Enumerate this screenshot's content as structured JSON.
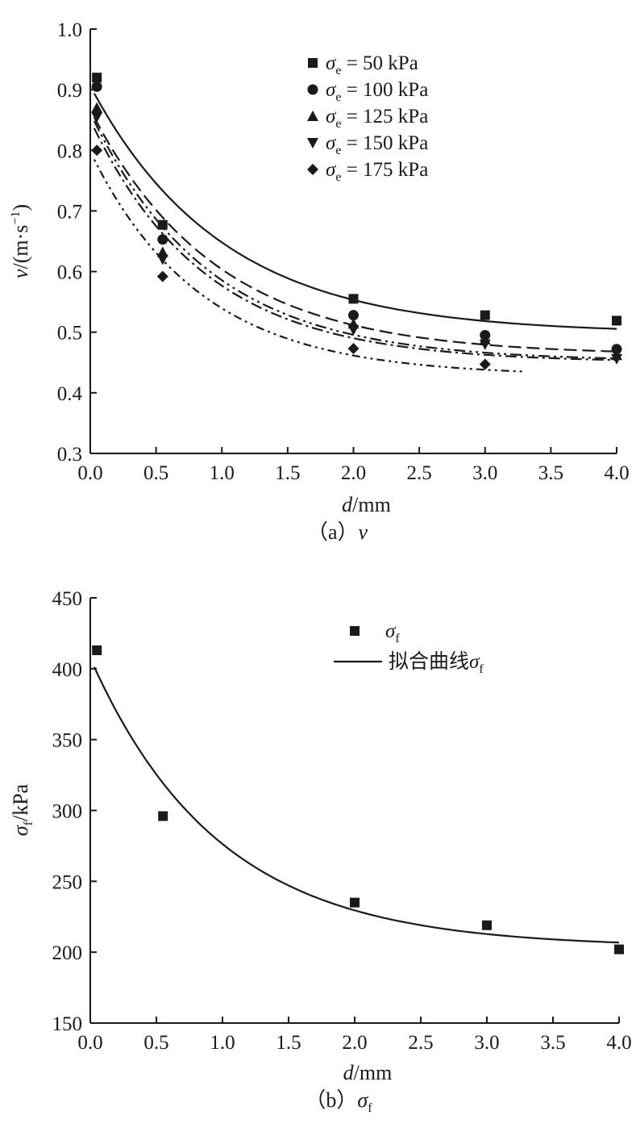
{
  "chart_data": [
    {
      "type": "scatter",
      "caption": "（a）v",
      "xlabel": "d/mm",
      "ylabel": "v/(m·s⁻¹)",
      "xlim": [
        0,
        4.0
      ],
      "ylim": [
        0.3,
        1.0
      ],
      "xticks": [
        "0.0",
        "0.5",
        "1.0",
        "1.5",
        "2.0",
        "2.5",
        "3.0",
        "3.5",
        "4.0"
      ],
      "yticks": [
        "0.3",
        "0.4",
        "0.5",
        "0.6",
        "0.7",
        "0.8",
        "0.9",
        "1.0"
      ],
      "legend_position": "top-right",
      "series": [
        {
          "name": "σe = 50 kPa",
          "marker": "square",
          "line": "solid",
          "x": [
            0.05,
            0.55,
            2.0,
            3.0,
            4.0
          ],
          "y": [
            0.92,
            0.677,
            0.555,
            0.528,
            0.519
          ],
          "fit": {
            "a": 0.408,
            "b": 1.0,
            "c": 0.498,
            "xmax": 4.0
          }
        },
        {
          "name": "σe = 100 kPa",
          "marker": "circle",
          "line": "dashed",
          "x": [
            0.05,
            0.55,
            2.0,
            3.0,
            4.0
          ],
          "y": [
            0.905,
            0.653,
            0.528,
            0.495,
            0.472
          ],
          "fit": {
            "a": 0.405,
            "b": 1.05,
            "c": 0.462,
            "xmax": 4.0
          }
        },
        {
          "name": "σe = 125 kPa",
          "marker": "triangle-up",
          "line": "dash-dot-dot",
          "x": [
            0.05,
            0.55,
            2.0,
            3.0,
            4.0
          ],
          "y": [
            0.87,
            0.632,
            0.514,
            0.488,
            0.462
          ],
          "fit": {
            "a": 0.41,
            "b": 1.12,
            "c": 0.452,
            "xmax": 4.0
          }
        },
        {
          "name": "σe = 150 kPa",
          "marker": "triangle-down",
          "line": "dash-dot",
          "x": [
            0.05,
            0.55,
            2.0,
            3.0,
            4.0
          ],
          "y": [
            0.855,
            0.62,
            0.504,
            0.48,
            0.456
          ],
          "fit": {
            "a": 0.4,
            "b": 1.15,
            "c": 0.45,
            "xmax": 4.0
          }
        },
        {
          "name": "σe = 175 kPa",
          "marker": "diamond",
          "line": "dotted",
          "x": [
            0.05,
            0.55,
            2.0,
            3.0
          ],
          "y": [
            0.8,
            0.592,
            0.473,
            0.447
          ],
          "fit": {
            "a": 0.37,
            "b": 1.2,
            "c": 0.428,
            "xmax": 3.3
          }
        }
      ]
    },
    {
      "type": "scatter",
      "caption": "（b）σf",
      "xlabel": "d/mm",
      "ylabel": "σf/kPa",
      "xlim": [
        0,
        4.0
      ],
      "ylim": [
        150,
        450
      ],
      "xticks": [
        "0.0",
        "0.5",
        "1.0",
        "1.5",
        "2.0",
        "2.5",
        "3.0",
        "3.5",
        "4.0"
      ],
      "yticks": [
        "150",
        "200",
        "250",
        "300",
        "350",
        "400",
        "450"
      ],
      "legend_position": "top-right",
      "series": [
        {
          "name": "σf",
          "marker": "square",
          "x": [
            0.05,
            0.55,
            2.0,
            3.0,
            4.0
          ],
          "y": [
            413,
            296,
            235,
            219,
            202
          ]
        },
        {
          "name": "拟合曲线σf",
          "line": "solid",
          "fit": {
            "a": 204,
            "b": 1.03,
            "c": 203.5,
            "xmax": 4.0
          }
        }
      ]
    }
  ]
}
